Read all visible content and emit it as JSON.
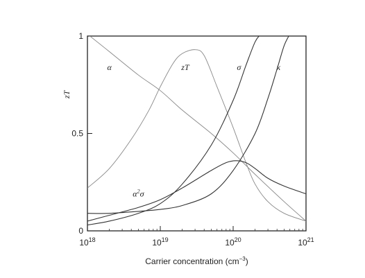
{
  "chart_data": {
    "type": "line",
    "xscale": "log",
    "xlim": [
      1e+18,
      1e+21
    ],
    "ylim": [
      0,
      1
    ],
    "xlabel": "Carrier concentration (cm",
    "xlabel_sup": "−3",
    "xlabel_end": ")",
    "ylabel_main": "z",
    "ylabel_end": "T",
    "yticks": [
      {
        "value": 0,
        "label": "0"
      },
      {
        "value": 0.5,
        "label": "0.5"
      },
      {
        "value": 1,
        "label": "1"
      }
    ],
    "xticks": [
      {
        "value": 1e+18,
        "base": "10",
        "exp": "18"
      },
      {
        "value": 1e+19,
        "base": "10",
        "exp": "19"
      },
      {
        "value": 1e+20,
        "base": "10",
        "exp": "20"
      },
      {
        "value": 1e+21,
        "base": "10",
        "exp": "21"
      }
    ],
    "grid": false,
    "legend": "none",
    "series": [
      {
        "label_main": "α",
        "label_sup": "",
        "label_end": "",
        "label_at": [
          2e+18,
          0.84
        ],
        "color": "#888888",
        "width": 0.9,
        "x": [
          1e+18,
          2e+18,
          5e+18,
          1e+19,
          2e+19,
          5e+19,
          1e+20,
          2e+20,
          5e+20,
          1e+21
        ],
        "y": [
          1.01,
          0.92,
          0.8,
          0.72,
          0.62,
          0.5,
          0.4,
          0.29,
          0.15,
          0.05
        ]
      },
      {
        "label_main": "z",
        "label_sup": "",
        "label_end": "T",
        "label_at": [
          2.2e+19,
          0.84
        ],
        "color": "#888888",
        "width": 0.9,
        "x": [
          1e+18,
          2e+18,
          4e+18,
          7e+18,
          1e+19,
          1.5e+19,
          2e+19,
          3e+19,
          4e+19,
          6e+19,
          1e+20,
          1.5e+20,
          2e+20,
          3e+20,
          5e+20,
          1e+21
        ],
        "y": [
          0.22,
          0.32,
          0.47,
          0.62,
          0.74,
          0.86,
          0.91,
          0.93,
          0.9,
          0.74,
          0.53,
          0.35,
          0.24,
          0.15,
          0.09,
          0.05
        ]
      },
      {
        "label_main": "σ",
        "label_sup": "",
        "label_end": "",
        "label_at": [
          1.2e+20,
          0.84
        ],
        "color": "#333333",
        "width": 1.1,
        "x": [
          1e+18,
          2e+18,
          5e+18,
          1e+19,
          2e+19,
          5e+19,
          1e+20,
          1.5e+20,
          2e+20,
          2.4e+20
        ],
        "y": [
          0.03,
          0.05,
          0.09,
          0.14,
          0.24,
          0.44,
          0.67,
          0.85,
          0.97,
          1.01
        ]
      },
      {
        "label_main": "κ",
        "label_sup": "",
        "label_end": "",
        "label_at": [
          4.2e+20,
          0.84
        ],
        "color": "#333333",
        "width": 1.1,
        "x": [
          1e+18,
          2e+18,
          5e+18,
          1e+19,
          2e+19,
          5e+19,
          1e+20,
          2e+20,
          3e+20,
          4e+20,
          5e+20,
          6e+20
        ],
        "y": [
          0.09,
          0.09,
          0.1,
          0.11,
          0.13,
          0.19,
          0.31,
          0.5,
          0.68,
          0.83,
          0.95,
          1.01
        ]
      },
      {
        "label_main": "α",
        "label_sup": "2",
        "label_end": "σ",
        "label_at": [
          5e+18,
          0.19
        ],
        "color": "#333333",
        "width": 1.1,
        "x": [
          1e+18,
          2e+18,
          5e+18,
          1e+19,
          2e+19,
          5e+19,
          8e+19,
          1.1e+20,
          1.5e+20,
          2e+20,
          3e+20,
          5e+20,
          1e+21
        ],
        "y": [
          0.05,
          0.08,
          0.12,
          0.16,
          0.22,
          0.31,
          0.35,
          0.36,
          0.35,
          0.32,
          0.27,
          0.23,
          0.19
        ]
      }
    ]
  }
}
